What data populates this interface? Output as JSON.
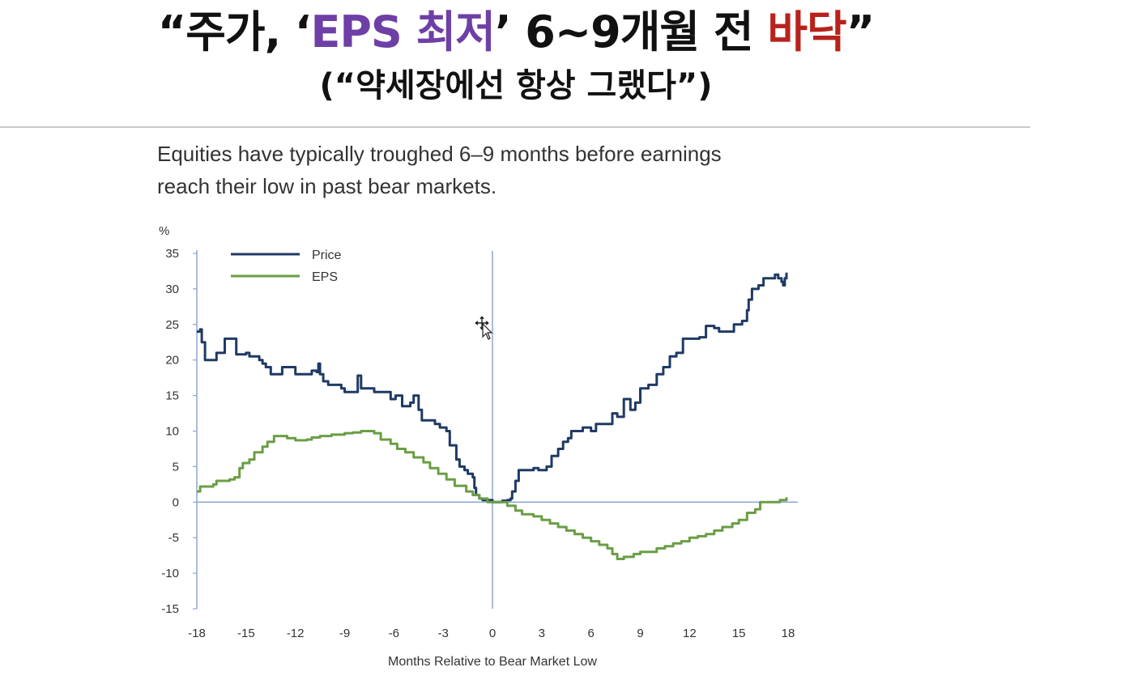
{
  "headline": {
    "line1_a": "“주가, ‘",
    "line1_b": "EPS 최저",
    "line1_c": "’ 6~9개월 전 ",
    "line1_d": "바닥",
    "line1_e": "”",
    "line2": "(“약세장에선 항상 그랬다”)"
  },
  "colors": {
    "headline_accent_purple": "#6e3fa6",
    "headline_accent_red": "#b8221c",
    "price": "#1f3a64",
    "eps": "#6a9e45",
    "zero_line": "#8ea7cf",
    "axis": "#8ea7cf"
  },
  "chart_data": {
    "type": "line",
    "title": "Equities have typically troughed 6–9 months before earnings reach their low in past bear markets.",
    "xlabel": "Months Relative to Bear Market Low",
    "ylabel": "%",
    "xlim": [
      -18,
      18
    ],
    "ylim": [
      -15,
      35
    ],
    "xticks": [
      -18,
      -15,
      -12,
      -9,
      -6,
      -3,
      0,
      3,
      6,
      9,
      12,
      15,
      18
    ],
    "yticks": [
      35,
      30,
      25,
      20,
      15,
      10,
      5,
      0,
      -5,
      -10,
      -15
    ],
    "grid": false,
    "legend": "top-left",
    "series": [
      {
        "name": "Price",
        "color": "#1f3a64",
        "points": [
          [
            -18,
            24
          ],
          [
            -17.8,
            24.3
          ],
          [
            -17.7,
            22.5
          ],
          [
            -17.5,
            20
          ],
          [
            -17,
            20
          ],
          [
            -16.8,
            21
          ],
          [
            -16.5,
            21
          ],
          [
            -16.3,
            23
          ],
          [
            -15.8,
            23
          ],
          [
            -15.6,
            20.8
          ],
          [
            -15,
            21
          ],
          [
            -14.8,
            20.5
          ],
          [
            -14.2,
            20
          ],
          [
            -14,
            19.5
          ],
          [
            -13.8,
            19
          ],
          [
            -13.5,
            18
          ],
          [
            -13,
            18
          ],
          [
            -12.8,
            19
          ],
          [
            -12.3,
            19
          ],
          [
            -12,
            18
          ],
          [
            -11.3,
            18
          ],
          [
            -11,
            18.5
          ],
          [
            -10.7,
            18.3
          ],
          [
            -10.6,
            19.5
          ],
          [
            -10.5,
            18
          ],
          [
            -10.3,
            17
          ],
          [
            -10,
            16.5
          ],
          [
            -9.5,
            16.5
          ],
          [
            -9.2,
            16
          ],
          [
            -9,
            15.5
          ],
          [
            -8.3,
            15.5
          ],
          [
            -8.2,
            17.8
          ],
          [
            -8,
            16
          ],
          [
            -7.5,
            16
          ],
          [
            -7.2,
            15.5
          ],
          [
            -6.5,
            15.5
          ],
          [
            -6.2,
            14.5
          ],
          [
            -5.9,
            15
          ],
          [
            -5.5,
            13.5
          ],
          [
            -5,
            14
          ],
          [
            -4.8,
            15
          ],
          [
            -4.5,
            13
          ],
          [
            -4.3,
            11.5
          ],
          [
            -4,
            11.5
          ],
          [
            -3.5,
            11
          ],
          [
            -3.2,
            10.5
          ],
          [
            -2.8,
            10
          ],
          [
            -2.6,
            8
          ],
          [
            -2.2,
            6
          ],
          [
            -2,
            5
          ],
          [
            -1.7,
            4.5
          ],
          [
            -1.5,
            4
          ],
          [
            -1.2,
            3.5
          ],
          [
            -1.1,
            2
          ],
          [
            -1,
            1
          ],
          [
            -0.8,
            0.5
          ],
          [
            -0.6,
            0.3
          ],
          [
            0,
            0
          ],
          [
            0.3,
            0
          ],
          [
            0.6,
            0.2
          ],
          [
            0.9,
            0.3
          ],
          [
            1.1,
            0.5
          ],
          [
            1.2,
            1.5
          ],
          [
            1.4,
            3
          ],
          [
            1.6,
            4.5
          ],
          [
            2,
            4.5
          ],
          [
            2.5,
            4.8
          ],
          [
            2.8,
            4.5
          ],
          [
            3.3,
            5
          ],
          [
            3.6,
            6.5
          ],
          [
            4,
            7.5
          ],
          [
            4.3,
            8.5
          ],
          [
            4.6,
            9
          ],
          [
            4.8,
            10
          ],
          [
            5.5,
            10.5
          ],
          [
            6,
            10
          ],
          [
            6.3,
            11
          ],
          [
            7,
            11
          ],
          [
            7.3,
            12.5
          ],
          [
            7.6,
            12
          ],
          [
            8,
            14.5
          ],
          [
            8.4,
            13
          ],
          [
            8.7,
            14
          ],
          [
            9,
            16
          ],
          [
            9.5,
            16.5
          ],
          [
            10,
            18
          ],
          [
            10.4,
            19
          ],
          [
            10.8,
            20.5
          ],
          [
            11.2,
            21
          ],
          [
            11.6,
            23
          ],
          [
            12,
            23
          ],
          [
            12.6,
            23.2
          ],
          [
            13,
            24.8
          ],
          [
            13.5,
            24.5
          ],
          [
            13.8,
            24
          ],
          [
            14.4,
            24
          ],
          [
            14.7,
            25
          ],
          [
            15.2,
            25.5
          ],
          [
            15.5,
            27
          ],
          [
            15.6,
            28.5
          ],
          [
            15.8,
            30
          ],
          [
            16.2,
            30.5
          ],
          [
            16.5,
            31.5
          ],
          [
            17,
            31.5
          ],
          [
            17.2,
            32
          ],
          [
            17.4,
            31.5
          ],
          [
            17.6,
            31
          ],
          [
            17.7,
            30.5
          ],
          [
            17.8,
            31.5
          ],
          [
            17.9,
            32.3
          ]
        ]
      },
      {
        "name": "EPS",
        "color": "#6a9e45",
        "points": [
          [
            -18,
            1.5
          ],
          [
            -17.8,
            2.2
          ],
          [
            -17,
            2.5
          ],
          [
            -16.8,
            3
          ],
          [
            -16,
            3.2
          ],
          [
            -15.7,
            3.5
          ],
          [
            -15.4,
            4.8
          ],
          [
            -15.2,
            5.5
          ],
          [
            -14.8,
            6
          ],
          [
            -14.5,
            7
          ],
          [
            -14,
            7.8
          ],
          [
            -13.7,
            8.5
          ],
          [
            -13.3,
            9.3
          ],
          [
            -12.5,
            9
          ],
          [
            -12,
            8.7
          ],
          [
            -11.3,
            8.8
          ],
          [
            -11,
            9.1
          ],
          [
            -10.5,
            9.3
          ],
          [
            -9.8,
            9.5
          ],
          [
            -9,
            9.7
          ],
          [
            -8.5,
            9.8
          ],
          [
            -8,
            10
          ],
          [
            -7.5,
            10
          ],
          [
            -7.2,
            9.7
          ],
          [
            -6.8,
            8.8
          ],
          [
            -6.2,
            8.2
          ],
          [
            -5.8,
            7.5
          ],
          [
            -5.3,
            7
          ],
          [
            -4.8,
            6.3
          ],
          [
            -4.2,
            5.6
          ],
          [
            -3.8,
            4.8
          ],
          [
            -3.3,
            4
          ],
          [
            -2.8,
            3.2
          ],
          [
            -2.3,
            2.3
          ],
          [
            -1.6,
            1.5
          ],
          [
            -1.2,
            1
          ],
          [
            -0.8,
            0.5
          ],
          [
            -0.3,
            0
          ],
          [
            0,
            0
          ],
          [
            0.7,
            0
          ],
          [
            0.9,
            -0.5
          ],
          [
            1.4,
            -1.2
          ],
          [
            1.8,
            -1.7
          ],
          [
            2.5,
            -2
          ],
          [
            3,
            -2.5
          ],
          [
            3.5,
            -3
          ],
          [
            4,
            -3.5
          ],
          [
            4.5,
            -4
          ],
          [
            5,
            -4.5
          ],
          [
            5.5,
            -5
          ],
          [
            6,
            -5.5
          ],
          [
            6.5,
            -6
          ],
          [
            7,
            -6.5
          ],
          [
            7.3,
            -7.3
          ],
          [
            7.6,
            -8
          ],
          [
            8,
            -7.7
          ],
          [
            8.6,
            -7.3
          ],
          [
            9,
            -7
          ],
          [
            9.5,
            -7
          ],
          [
            10,
            -6.5
          ],
          [
            10.5,
            -6.2
          ],
          [
            11,
            -5.8
          ],
          [
            11.5,
            -5.5
          ],
          [
            12,
            -5
          ],
          [
            12.5,
            -4.8
          ],
          [
            13,
            -4.5
          ],
          [
            13.5,
            -4
          ],
          [
            14,
            -3.5
          ],
          [
            14.6,
            -3
          ],
          [
            15,
            -2.5
          ],
          [
            15.5,
            -1.5
          ],
          [
            16,
            -1
          ],
          [
            16.3,
            0
          ],
          [
            17,
            0
          ],
          [
            17.5,
            0.3
          ],
          [
            17.9,
            0.7
          ]
        ]
      }
    ]
  }
}
